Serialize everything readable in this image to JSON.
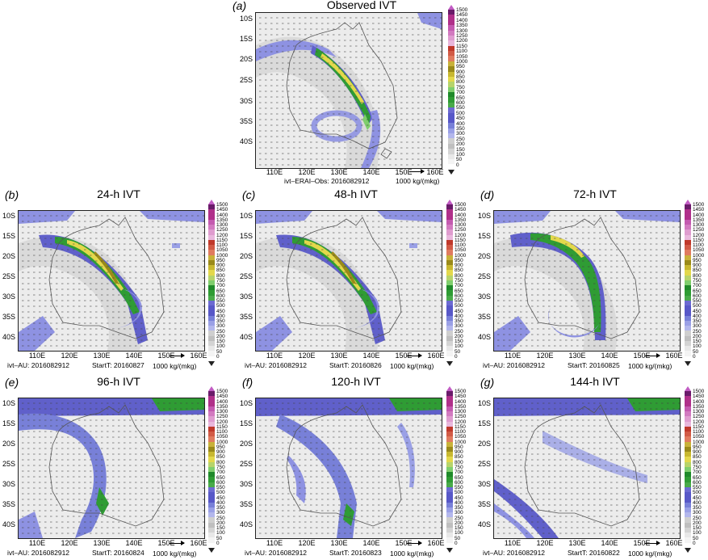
{
  "figure": {
    "lat_labels": [
      "10S",
      "15S",
      "20S",
      "25S",
      "30S",
      "35S",
      "40S"
    ],
    "lon_labels": [
      "110E",
      "120E",
      "130E",
      "140E",
      "150E",
      "160E"
    ],
    "colorbar_labels": [
      "1500",
      "1450",
      "1400",
      "1350",
      "1300",
      "1250",
      "1200",
      "1150",
      "1100",
      "1050",
      "1000",
      "950",
      "900",
      "850",
      "800",
      "750",
      "700",
      "650",
      "600",
      "550",
      "500",
      "450",
      "400",
      "350",
      "300",
      "250",
      "200",
      "150",
      "100",
      "50",
      "0"
    ],
    "colors": {
      "low": "#ffffff",
      "gray_light": "#e8e8e8",
      "gray": "#bfbfbf",
      "blue_light": "#9aa0e6",
      "blue": "#5858c8",
      "green_light": "#7fce6d",
      "green": "#1f8a2a",
      "yellow": "#e3d84c",
      "olive": "#9a8a1a",
      "red": "#c0392b",
      "magenta": "#b0308a",
      "purple": "#6a1b6a"
    },
    "reference_vector": "1000 kg/(mkg)"
  },
  "panels": [
    {
      "letter": "(a)",
      "title": "Observed IVT",
      "caption_left": "ivt–ERAI–Obs: 2016082912",
      "caption_right": "1000 kg/(mkg)"
    },
    {
      "letter": "(b)",
      "title": "24-h IVT",
      "caption_left": "ivt–AU: 2016082912",
      "caption_mid": "StartT: 20160827",
      "caption_right": "1000 kg/(mkg)"
    },
    {
      "letter": "(c)",
      "title": "48-h IVT",
      "caption_left": "ivt–AU: 2016082912",
      "caption_mid": "StartT: 20160826",
      "caption_right": "1000 kg/(mkg)"
    },
    {
      "letter": "(d)",
      "title": "72-h IVT",
      "caption_left": "ivt–AU: 2016082912",
      "caption_mid": "StartT: 20160825",
      "caption_right": "1000 kg/(mkg)"
    },
    {
      "letter": "(e)",
      "title": "96-h IVT",
      "caption_left": "ivt–AU: 2016082912",
      "caption_mid": "StartT: 20160824",
      "caption_right": "1000 kg/(mkg)"
    },
    {
      "letter": "(f)",
      "title": "120-h IVT",
      "caption_left": "ivt–AU: 2016082912",
      "caption_mid": "StartT: 20160823",
      "caption_right": "1000 kg/(mkg)"
    },
    {
      "letter": "(g)",
      "title": "144-h IVT",
      "caption_left": "ivt–AU: 2016082912",
      "caption_mid": "StartT: 20160822",
      "caption_right": "1000 kg/(mkg)"
    }
  ]
}
